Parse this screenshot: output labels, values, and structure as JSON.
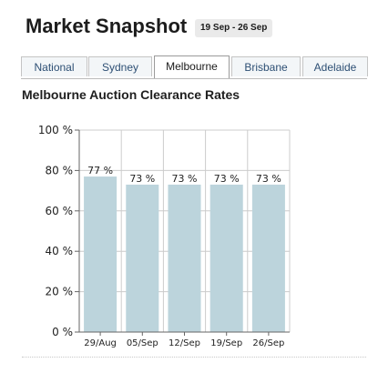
{
  "header": {
    "title": "Market Snapshot",
    "date_range": "19 Sep - 26 Sep"
  },
  "tabs": [
    {
      "label": "National",
      "active": false
    },
    {
      "label": "Sydney",
      "active": false
    },
    {
      "label": "Melbourne",
      "active": true
    },
    {
      "label": "Brisbane",
      "active": false
    },
    {
      "label": "Adelaide",
      "active": false
    }
  ],
  "chart_data": {
    "type": "bar",
    "title": "Melbourne Auction Clearance Rates",
    "xlabel": "",
    "ylabel": "",
    "categories": [
      "29/Aug",
      "05/Sep",
      "12/Sep",
      "19/Sep",
      "26/Sep"
    ],
    "values": [
      77,
      73,
      73,
      73,
      73
    ],
    "value_labels": [
      "77 %",
      "73 %",
      "73 %",
      "73 %",
      "73 %"
    ],
    "ylim": [
      0,
      100
    ],
    "yticks": [
      0,
      20,
      40,
      60,
      80,
      100
    ],
    "ytick_labels": [
      "0 %",
      "20 %",
      "40 %",
      "60 %",
      "80 %",
      "100 %"
    ],
    "grid": true,
    "legend": false,
    "colors": {
      "bar": "#bcd4dc",
      "grid": "#cccccc",
      "axis": "#666666"
    }
  }
}
